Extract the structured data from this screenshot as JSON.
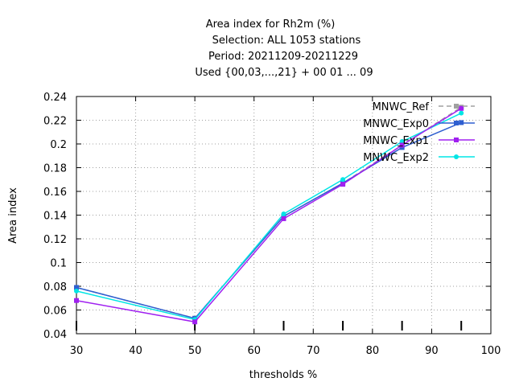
{
  "chart_data": {
    "type": "line",
    "title_lines": [
      "Area index  for Rh2m (%)",
      "Selection: ALL    1053 stations",
      "Period: 20211209-20211229",
      "Used {00,03,...,21} + 00 01 ... 09"
    ],
    "xlabel": "thresholds %",
    "ylabel": "Area index",
    "xlim": [
      30,
      100
    ],
    "ylim": [
      0.04,
      0.24
    ],
    "xticks": [
      30,
      40,
      50,
      60,
      70,
      80,
      90,
      100
    ],
    "yticks": [
      0.04,
      0.06,
      0.08,
      0.1,
      0.12,
      0.14,
      0.16,
      0.18,
      0.2,
      0.22,
      0.24
    ],
    "xtick_labels": [
      "30",
      "40",
      "50",
      "60",
      "70",
      "80",
      "90",
      "100"
    ],
    "ytick_labels": [
      "0.04",
      "0.06",
      "0.08",
      "0.1",
      "0.12",
      "0.14",
      "0.16",
      "0.18",
      "0.2",
      "0.22",
      "0.24"
    ],
    "threshold_marks": [
      30,
      50,
      65,
      75,
      85,
      95
    ],
    "grid": true,
    "legend_position": "top-right",
    "series": [
      {
        "name": "MNWC_Ref",
        "color": "#a0a0a0",
        "dashed": true,
        "x": [
          30,
          50,
          65,
          75,
          85,
          95
        ],
        "y": [
          0.079,
          0.053,
          0.139,
          0.167,
          0.199,
          0.231
        ]
      },
      {
        "name": "MNWC_Exp0",
        "color": "#2f5fd0",
        "dashed": false,
        "x": [
          30,
          50,
          65,
          75,
          85,
          95
        ],
        "y": [
          0.079,
          0.053,
          0.139,
          0.167,
          0.197,
          0.218
        ]
      },
      {
        "name": "MNWC_Exp1",
        "color": "#a020f0",
        "dashed": false,
        "x": [
          30,
          50,
          65,
          75,
          85,
          95
        ],
        "y": [
          0.068,
          0.05,
          0.137,
          0.166,
          0.199,
          0.23
        ]
      },
      {
        "name": "MNWC_Exp2",
        "color": "#00e5e5",
        "dashed": false,
        "x": [
          30,
          50,
          65,
          75,
          85,
          95
        ],
        "y": [
          0.076,
          0.052,
          0.141,
          0.17,
          0.202,
          0.226
        ]
      }
    ]
  }
}
